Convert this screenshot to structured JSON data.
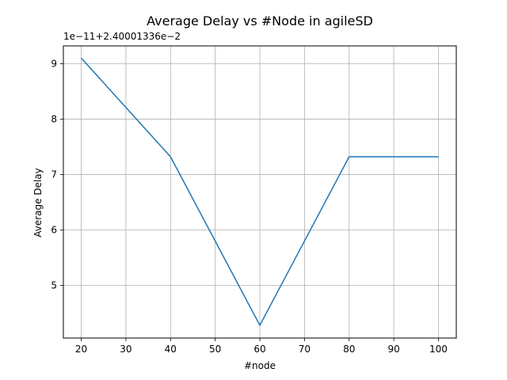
{
  "chart_data": {
    "type": "line",
    "title": "Average Delay vs #Node in agileSD",
    "xlabel": "#node",
    "ylabel": "Average Delay",
    "y_offset_text": "1e−11+2.40001336e−2",
    "x": [
      20,
      40,
      60,
      80,
      100
    ],
    "series": [
      {
        "values": [
          9.1,
          7.32,
          4.28,
          7.32,
          7.32
        ]
      }
    ],
    "xlim": [
      16,
      104
    ],
    "ylim": [
      4.05,
      9.32
    ],
    "x_ticks": [
      20,
      30,
      40,
      50,
      60,
      70,
      80,
      90,
      100
    ],
    "y_ticks": [
      5,
      6,
      7,
      8,
      9
    ],
    "y_tick_labels": [
      "5",
      "6",
      "7",
      "8",
      "9"
    ],
    "grid": true,
    "line_color": "#1f77b4",
    "grid_color": "#b0b0b0"
  }
}
